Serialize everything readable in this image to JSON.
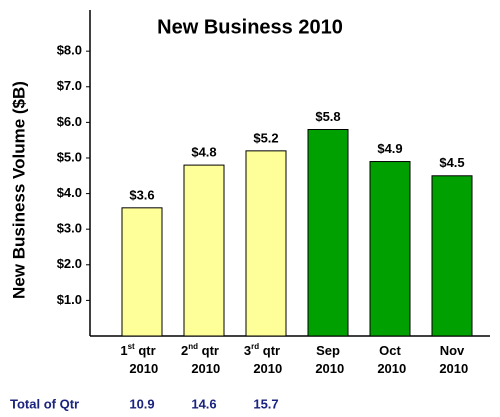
{
  "chart_data": {
    "type": "bar",
    "title": "New Business 2010",
    "y_label": "New Business Volume ($B)",
    "categories": [
      "1st qtr 2010",
      "2nd qtr 2010",
      "3rd qtr 2010",
      "Sep 2010",
      "Oct 2010",
      "Nov 2010"
    ],
    "values": [
      3.6,
      4.8,
      5.2,
      5.8,
      4.9,
      4.5
    ],
    "value_labels": [
      "$3.6",
      "$4.8",
      "$5.2",
      "$5.8",
      "$4.9",
      "$4.5"
    ],
    "colors": [
      "#ffff99",
      "#ffff99",
      "#ffff99",
      "#00a000",
      "#00a000",
      "#00a000"
    ],
    "ylim": [
      0,
      9.1
    ],
    "yticks": [
      {
        "value": 1,
        "label": "$1.0"
      },
      {
        "value": 2,
        "label": "$2.0"
      },
      {
        "value": 3,
        "label": "$3.0"
      },
      {
        "value": 4,
        "label": "$4.0"
      },
      {
        "value": 5,
        "label": "$5.0"
      },
      {
        "value": 6,
        "label": "$6.0"
      },
      {
        "value": 7,
        "label": "$7.0"
      },
      {
        "value": 8,
        "label": "$8.0"
      }
    ],
    "grid": false,
    "totals": {
      "label": "Total of Qtr",
      "values": [
        10.9,
        14.6,
        15.7
      ]
    }
  }
}
